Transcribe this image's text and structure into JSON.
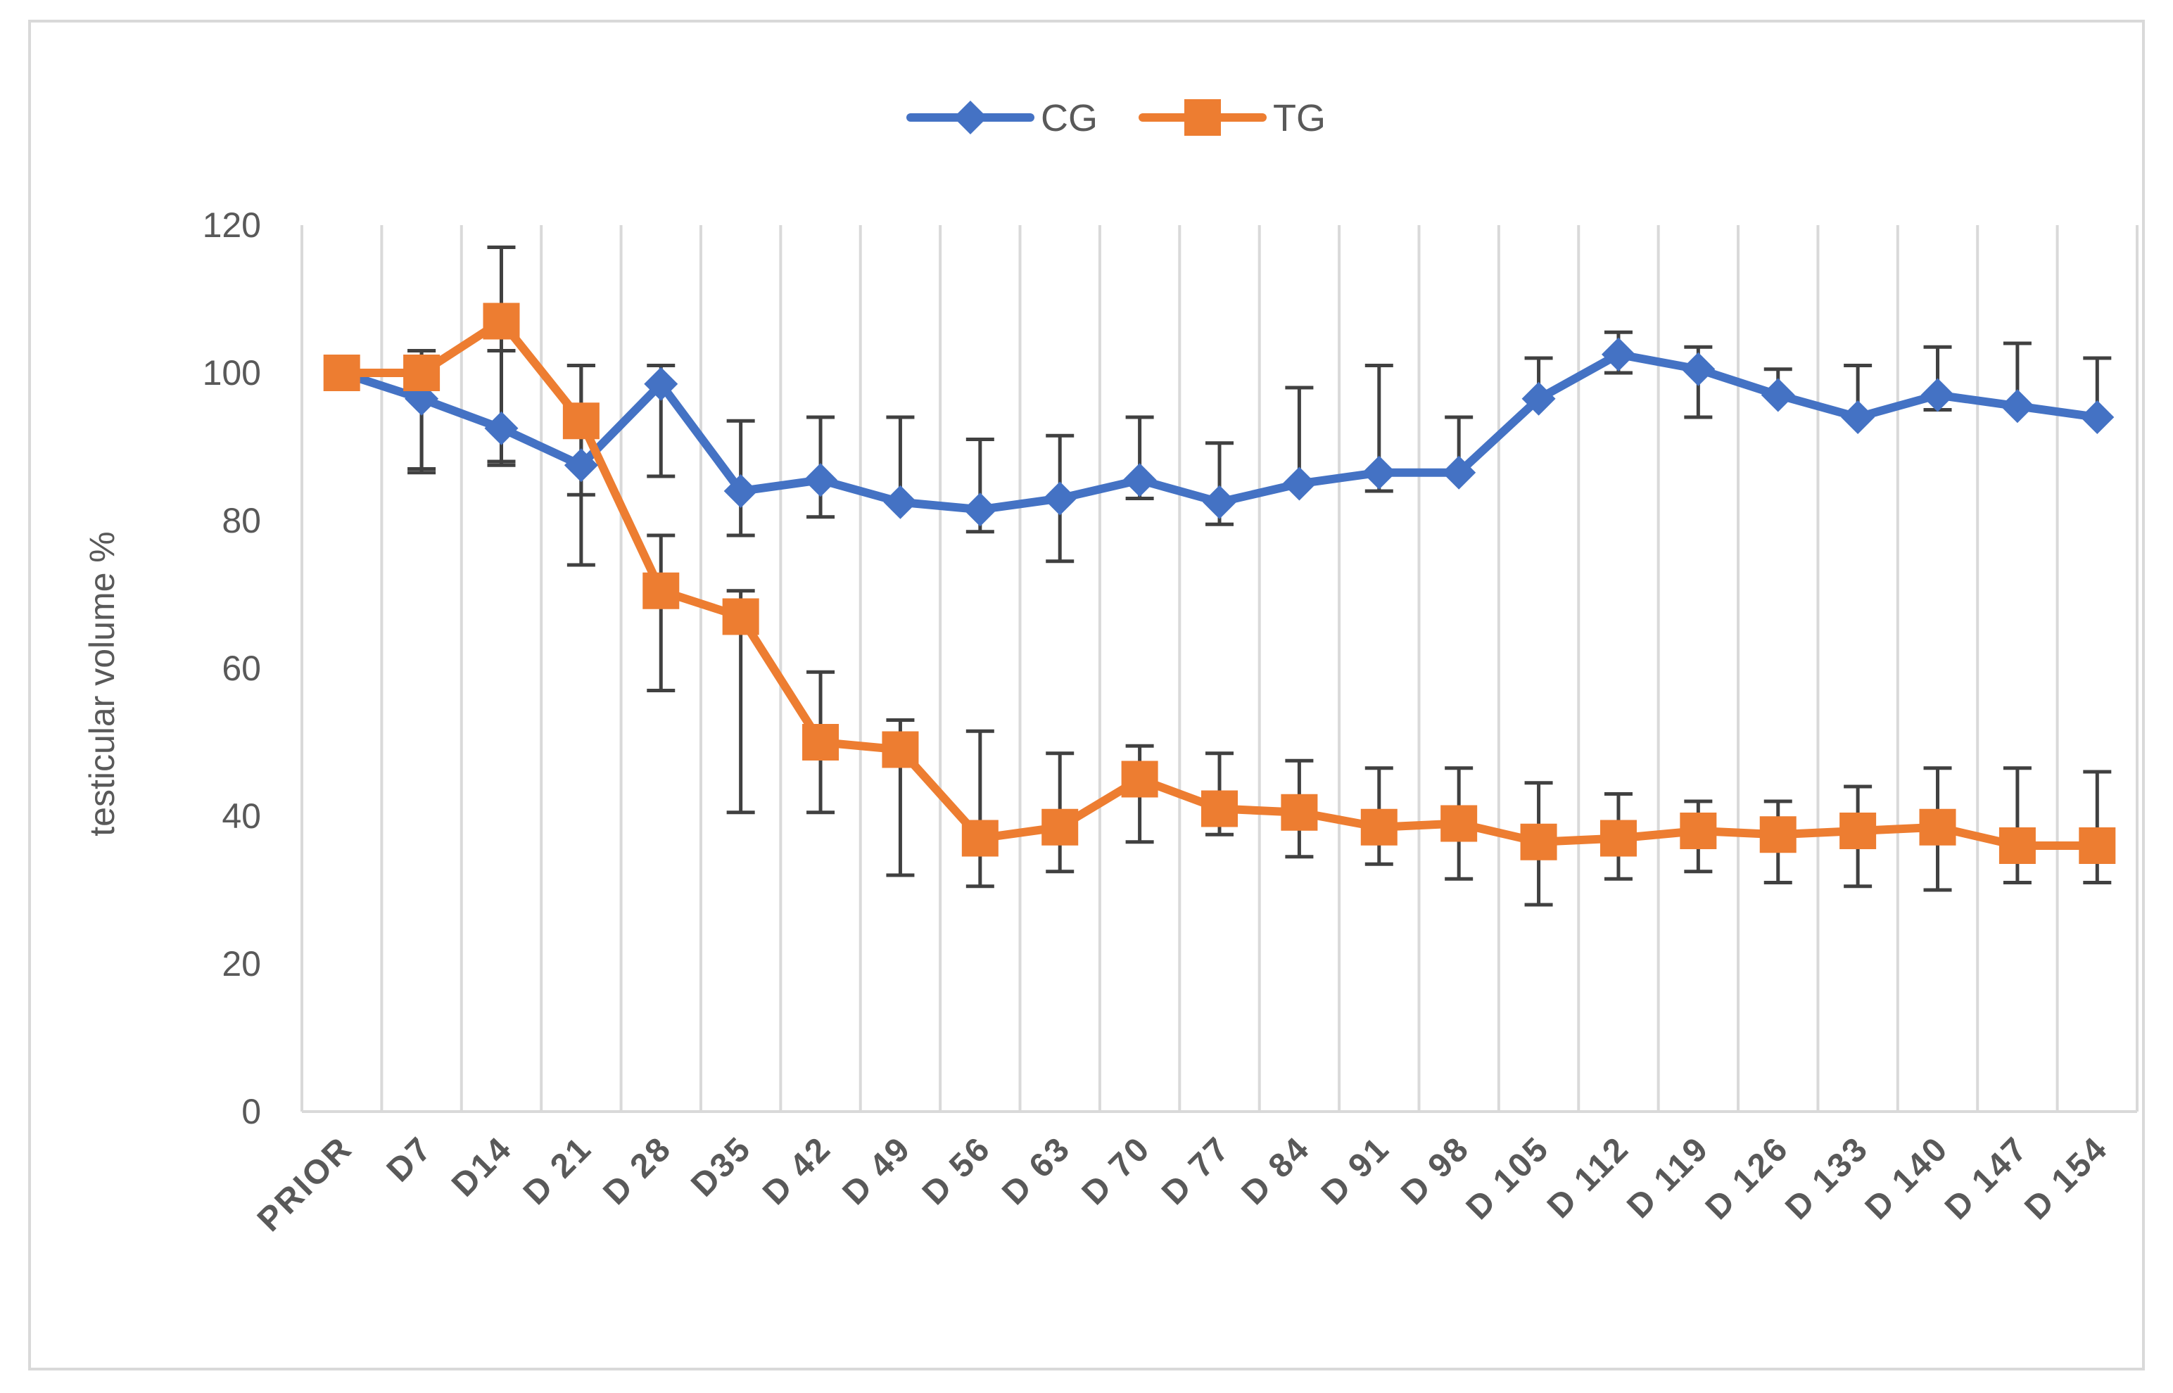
{
  "chart_data": {
    "type": "line",
    "title": "",
    "xlabel": "",
    "ylabel": "testicular volume  %",
    "ylim": [
      0,
      120
    ],
    "yticks": [
      0,
      20,
      40,
      60,
      80,
      100,
      120
    ],
    "grid": "vertical",
    "legend_position": "top-center",
    "categories": [
      "PRIOR",
      "D7",
      "D14",
      "D 21",
      "D 28",
      "D35",
      "D 42",
      "D 49",
      "D 56",
      "D 63",
      "D 70",
      "D 77",
      "D 84",
      "D 91",
      "D 98",
      "D 105",
      "D 112",
      "D 119",
      "D 126",
      "D 133",
      "D 140",
      "D 147",
      "D 154"
    ],
    "series": [
      {
        "name": "CG",
        "color": "#4472c4",
        "marker": "diamond",
        "values": [
          100,
          96.5,
          92.5,
          87.5,
          98.5,
          84,
          85.5,
          82.5,
          81.5,
          83,
          85.5,
          82.5,
          85,
          86.5,
          86.5,
          96.5,
          102.5,
          100.5,
          97,
          94,
          97,
          95.5,
          94
        ],
        "error_upper": [
          100,
          103,
          103,
          101,
          101,
          93.5,
          94,
          94,
          91,
          91.5,
          94,
          90.5,
          98,
          101,
          94,
          102,
          105.5,
          103.5,
          100.5,
          101,
          103.5,
          104,
          102
        ],
        "error_lower": [
          100,
          87,
          88,
          74,
          86,
          78,
          80.5,
          82.5,
          78.5,
          74.5,
          83,
          79.5,
          85,
          84,
          86.5,
          96.5,
          100,
          94,
          97,
          94,
          95,
          95.5,
          94
        ]
      },
      {
        "name": "TG",
        "color": "#ed7d31",
        "marker": "square",
        "values": [
          100,
          100,
          107,
          93.5,
          70.5,
          67,
          50,
          49,
          37,
          38.5,
          45,
          41,
          40.5,
          38.5,
          39,
          36.5,
          37,
          38,
          37.5,
          38,
          38.5,
          36,
          36
        ],
        "error_upper": [
          100,
          103,
          117,
          101,
          78,
          70.5,
          59.5,
          53,
          51.5,
          48.5,
          49.5,
          48.5,
          47.5,
          46.5,
          46.5,
          44.5,
          43,
          42,
          42,
          44,
          46.5,
          46.5,
          46
        ],
        "error_lower": [
          100,
          86.5,
          87.5,
          83.5,
          57,
          40.5,
          40.5,
          32,
          30.5,
          32.5,
          36.5,
          37.5,
          34.5,
          33.5,
          31.5,
          28,
          31.5,
          32.5,
          31,
          30.5,
          30,
          31,
          31
        ]
      }
    ]
  }
}
